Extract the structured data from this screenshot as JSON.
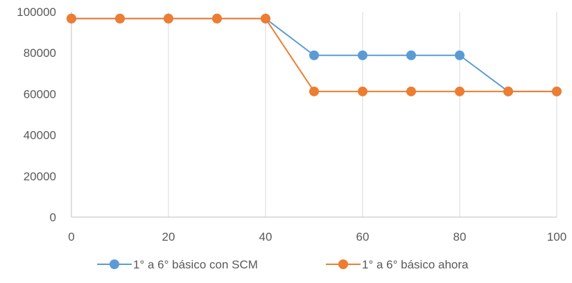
{
  "chart_data": {
    "type": "line",
    "title": "",
    "xlabel": "",
    "ylabel": "",
    "xlim": [
      0,
      100
    ],
    "ylim": [
      0,
      100000
    ],
    "xticks": [
      0,
      20,
      40,
      60,
      80,
      100
    ],
    "yticks": [
      0,
      20000,
      40000,
      60000,
      80000,
      100000
    ],
    "xtick_labels": [
      "0",
      "20",
      "40",
      "60",
      "80",
      "100"
    ],
    "ytick_labels": [
      "0",
      "20000",
      "40000",
      "60000",
      "80000",
      "100000"
    ],
    "grid": "vertical",
    "legend_position": "bottom",
    "x": [
      0,
      10,
      20,
      30,
      40,
      50,
      60,
      70,
      80,
      90,
      100
    ],
    "series": [
      {
        "name": "1° a 6° básico con SCM",
        "color": "#5B9BD5",
        "values": [
          96700,
          96700,
          96700,
          96700,
          96700,
          78800,
          78800,
          78800,
          78800,
          61200,
          61200
        ]
      },
      {
        "name": "1° a 6° básico ahora",
        "color": "#ED7D31",
        "values": [
          96700,
          96700,
          96700,
          96700,
          96700,
          61200,
          61200,
          61200,
          61200,
          61200,
          61200
        ]
      }
    ]
  }
}
